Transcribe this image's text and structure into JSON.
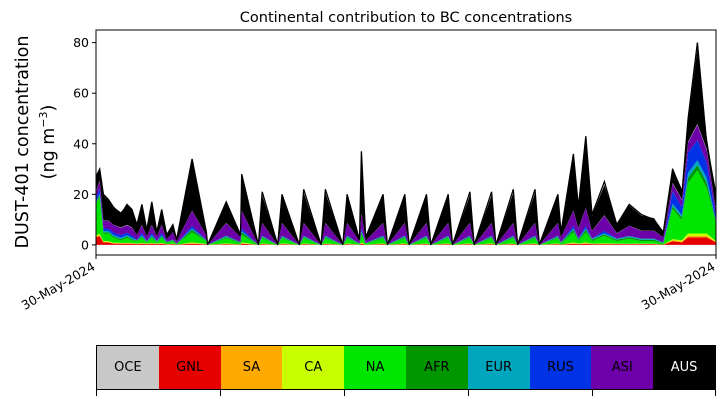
{
  "chart_data": {
    "type": "area",
    "title": "Continental contribution to BC concentrations",
    "ylabel_line1": "DUST-401 concentration",
    "ylabel_line2_prefix": "(ng m",
    "ylabel_line2_sup": "−3",
    "ylabel_line2_suffix": ")",
    "xlabel": "",
    "ylim": [
      -4,
      85
    ],
    "yticks": [
      0,
      20,
      40,
      60,
      80
    ],
    "xticks": [
      "30-May-2024",
      "30-May-2024"
    ],
    "grid": false,
    "stacked": true,
    "series": [
      {
        "name": "OCE",
        "color": "#c8c8c8"
      },
      {
        "name": "GNL",
        "color": "#e60000"
      },
      {
        "name": "SA",
        "color": "#ffaa00"
      },
      {
        "name": "CA",
        "color": "#c8ff00"
      },
      {
        "name": "NA",
        "color": "#00e600"
      },
      {
        "name": "AFR",
        "color": "#009600"
      },
      {
        "name": "EUR",
        "color": "#00a5be"
      },
      {
        "name": "RUS",
        "color": "#0032e6"
      },
      {
        "name": "ASI",
        "color": "#6e00aa"
      },
      {
        "name": "AUS",
        "color": "#000000"
      }
    ],
    "profile": {
      "x": [
        0.0,
        0.006,
        0.012,
        0.02,
        0.028,
        0.04,
        0.05,
        0.058,
        0.066,
        0.074,
        0.082,
        0.09,
        0.098,
        0.106,
        0.114,
        0.124,
        0.13,
        0.155,
        0.178,
        0.18,
        0.21,
        0.233,
        0.235,
        0.262,
        0.268,
        0.293,
        0.3,
        0.328,
        0.335,
        0.363,
        0.37,
        0.398,
        0.405,
        0.425,
        0.428,
        0.435,
        0.463,
        0.47,
        0.498,
        0.505,
        0.533,
        0.54,
        0.568,
        0.575,
        0.603,
        0.61,
        0.638,
        0.645,
        0.673,
        0.68,
        0.708,
        0.715,
        0.745,
        0.75,
        0.77,
        0.778,
        0.79,
        0.8,
        0.82,
        0.84,
        0.86,
        0.88,
        0.9,
        0.915,
        0.93,
        0.945,
        0.955,
        0.97,
        0.985,
        1.0
      ],
      "total": [
        27,
        30,
        20,
        18,
        15,
        12,
        16,
        14,
        8,
        16,
        6,
        17,
        5,
        14,
        4,
        8,
        2,
        34,
        5,
        0,
        17,
        4,
        28,
        0,
        21,
        0,
        20,
        0,
        22,
        0,
        22,
        0,
        20,
        2,
        37,
        3,
        20,
        0,
        20,
        0,
        20,
        0,
        20,
        0,
        21,
        0,
        21,
        0,
        22,
        0,
        22,
        0,
        20,
        5,
        36,
        15,
        43,
        12,
        25,
        8,
        16,
        12,
        10,
        5,
        30,
        20,
        50,
        80,
        40,
        20
      ],
      "AUS": [
        6,
        5,
        10,
        8,
        7,
        6,
        8,
        7,
        4,
        8,
        3,
        8,
        2,
        6,
        2,
        3,
        1,
        20,
        1,
        0,
        8,
        1,
        14,
        0,
        11,
        0,
        11,
        0,
        12,
        0,
        12,
        0,
        11,
        1,
        24,
        1,
        11,
        0,
        11,
        0,
        11,
        0,
        11,
        0,
        11,
        0,
        11,
        0,
        12,
        0,
        12,
        0,
        11,
        2,
        22,
        8,
        28,
        6,
        12,
        4,
        8,
        6,
        5,
        2,
        6,
        4,
        8,
        30,
        5,
        6
      ],
      "ASI": [
        2,
        3,
        3,
        3,
        3,
        3,
        3,
        3,
        2,
        3,
        2,
        3,
        2,
        3,
        1,
        3,
        1,
        6,
        2,
        0,
        5,
        2,
        7,
        0,
        5,
        0,
        5,
        0,
        5,
        0,
        5,
        0,
        5,
        1,
        6,
        1,
        5,
        0,
        5,
        0,
        5,
        0,
        5,
        0,
        5,
        0,
        5,
        0,
        5,
        0,
        5,
        0,
        5,
        2,
        6,
        4,
        7,
        3,
        6,
        2,
        4,
        3,
        3,
        2,
        3,
        3,
        4,
        6,
        5,
        2
      ],
      "RUS": [
        2,
        2,
        1,
        1,
        1,
        1,
        1,
        1,
        0,
        1,
        0,
        1,
        0,
        1,
        0,
        0,
        0,
        1,
        0,
        0,
        0,
        0,
        1,
        0,
        0,
        0,
        0,
        0,
        0,
        0,
        0,
        0,
        0,
        0,
        1,
        0,
        0,
        0,
        0,
        0,
        0,
        0,
        0,
        0,
        0,
        0,
        0,
        0,
        0,
        0,
        0,
        0,
        0,
        0,
        1,
        0,
        1,
        0,
        1,
        0,
        0,
        0,
        0,
        0,
        5,
        3,
        8,
        8,
        6,
        2
      ],
      "EUR": [
        0.5,
        0.5,
        0.5,
        0.5,
        0.5,
        0.5,
        0.5,
        0.5,
        0.2,
        0.5,
        0.2,
        0.5,
        0.2,
        0.5,
        0.2,
        0.3,
        0.1,
        0.5,
        0.2,
        0,
        0.5,
        0.2,
        0.5,
        0,
        0.5,
        0,
        0.5,
        0,
        0.5,
        0,
        0.5,
        0,
        0.5,
        0.1,
        0.5,
        0.1,
        0.5,
        0,
        0.5,
        0,
        0.5,
        0,
        0.5,
        0,
        0.5,
        0,
        0.5,
        0,
        0.5,
        0,
        0.5,
        0,
        0.5,
        0.2,
        0.5,
        0.5,
        0.5,
        0.5,
        0.5,
        0.5,
        0.5,
        0.5,
        0.5,
        0.2,
        1,
        1,
        2,
        2,
        2,
        0.5
      ],
      "AFR": [
        0.5,
        0.5,
        0.5,
        0.5,
        0.5,
        0.5,
        0.5,
        0.5,
        0.2,
        0.5,
        0.2,
        0.5,
        0.2,
        0.5,
        0.2,
        0.3,
        0.1,
        1,
        0.2,
        0,
        0.5,
        0.2,
        1,
        0,
        0.5,
        0,
        0.5,
        0,
        0.5,
        0,
        0.5,
        0,
        0.5,
        0.1,
        1,
        0.1,
        0.5,
        0,
        0.5,
        0,
        0.5,
        0,
        0.5,
        0,
        0.5,
        0,
        0.5,
        0,
        0.5,
        0,
        0.5,
        0,
        0.5,
        0.2,
        1,
        0.5,
        1,
        0.5,
        0.5,
        0.5,
        0.5,
        0.5,
        0.5,
        0.2,
        1,
        1,
        2,
        2,
        2,
        0.5
      ],
      "NA": [
        12,
        15,
        3,
        3,
        2,
        1,
        2,
        1,
        1,
        2,
        0.5,
        2,
        0.5,
        2,
        0.5,
        1,
        0.2,
        4,
        1,
        0,
        2,
        0.5,
        3,
        0,
        2,
        0,
        2,
        0,
        2,
        0,
        2,
        0,
        2,
        0.3,
        3,
        0.5,
        2,
        0,
        2,
        0,
        2,
        0,
        2,
        0,
        2,
        0,
        2,
        0,
        2,
        0,
        2,
        0,
        2,
        0.5,
        4,
        1,
        4,
        1,
        3,
        1,
        2,
        1,
        1,
        0.5,
        12,
        8,
        20,
        25,
        18,
        7
      ],
      "CA": [
        0.5,
        0.5,
        0.3,
        0.3,
        0.2,
        0.2,
        0.2,
        0.2,
        0.1,
        0.2,
        0.1,
        0.2,
        0.1,
        0.2,
        0.1,
        0.1,
        0,
        0.3,
        0.1,
        0,
        0.2,
        0.1,
        0.3,
        0,
        0.2,
        0,
        0.2,
        0,
        0.2,
        0,
        0.2,
        0,
        0.2,
        0,
        0.3,
        0,
        0.2,
        0,
        0.2,
        0,
        0.2,
        0,
        0.2,
        0,
        0.2,
        0,
        0.2,
        0,
        0.2,
        0,
        0.2,
        0,
        0.2,
        0,
        0.3,
        0.1,
        0.3,
        0.1,
        0.2,
        0.1,
        0.1,
        0.1,
        0.1,
        0,
        0.5,
        0.5,
        1,
        1,
        1,
        0.3
      ],
      "SA": [
        0.3,
        0.3,
        0.2,
        0.2,
        0.2,
        0.1,
        0.1,
        0.1,
        0.1,
        0.1,
        0.1,
        0.1,
        0.1,
        0.1,
        0,
        0.1,
        0,
        0.2,
        0.1,
        0,
        0.1,
        0,
        0.2,
        0,
        0.1,
        0,
        0.1,
        0,
        0.1,
        0,
        0.1,
        0,
        0.1,
        0,
        0.2,
        0,
        0.1,
        0,
        0.1,
        0,
        0.1,
        0,
        0.1,
        0,
        0.1,
        0,
        0.1,
        0,
        0.1,
        0,
        0.1,
        0,
        0.1,
        0,
        0.2,
        0.1,
        0.2,
        0.1,
        0.1,
        0.1,
        0.1,
        0.1,
        0.1,
        0,
        0.3,
        0.3,
        0.5,
        0.5,
        0.5,
        0.2
      ],
      "GNL": [
        3,
        3.5,
        1,
        1,
        0.5,
        0.5,
        0.5,
        0.5,
        0.3,
        0.5,
        0.3,
        0.5,
        0.3,
        0.5,
        0.2,
        0.3,
        0.1,
        0.5,
        0.2,
        0,
        0.3,
        0.1,
        0.5,
        0,
        0.3,
        0,
        0.3,
        0,
        0.3,
        0,
        0.3,
        0,
        0.3,
        0,
        0.5,
        0,
        0.3,
        0,
        0.3,
        0,
        0.3,
        0,
        0.3,
        0,
        0.3,
        0,
        0.3,
        0,
        0.3,
        0,
        0.3,
        0,
        0.3,
        0.1,
        0.5,
        0.3,
        0.5,
        0.3,
        0.3,
        0.3,
        0.3,
        0.3,
        0.3,
        0.1,
        1.5,
        1,
        3,
        3,
        3,
        1
      ],
      "OCE": [
        0.2,
        0.2,
        0.1,
        0.1,
        0.1,
        0.1,
        0.1,
        0.1,
        0,
        0.1,
        0,
        0.1,
        0,
        0.1,
        0,
        0,
        0,
        0.1,
        0,
        0,
        0.1,
        0,
        0.1,
        0,
        0.1,
        0,
        0.1,
        0,
        0.1,
        0,
        0.1,
        0,
        0.1,
        0,
        0.1,
        0,
        0.1,
        0,
        0.1,
        0,
        0.1,
        0,
        0.1,
        0,
        0.1,
        0,
        0.1,
        0,
        0.1,
        0,
        0.1,
        0,
        0.1,
        0,
        0.1,
        0.1,
        0.1,
        0.1,
        0.1,
        0.1,
        0.1,
        0.1,
        0.1,
        0,
        0.2,
        0.2,
        0.3,
        0.3,
        0.3,
        0.1
      ]
    }
  },
  "legend": {
    "labels": [
      "OCE",
      "GNL",
      "SA",
      "CA",
      "NA",
      "AFR",
      "EUR",
      "RUS",
      "ASI",
      "AUS"
    ],
    "colors": [
      "#c8c8c8",
      "#e60000",
      "#ffaa00",
      "#c8ff00",
      "#00e600",
      "#009600",
      "#00a5be",
      "#0032e6",
      "#6e00aa",
      "#000000"
    ],
    "text_colors": [
      "#000000",
      "#000000",
      "#000000",
      "#000000",
      "#000000",
      "#000000",
      "#000000",
      "#000000",
      "#000000",
      "#ffffff"
    ]
  }
}
